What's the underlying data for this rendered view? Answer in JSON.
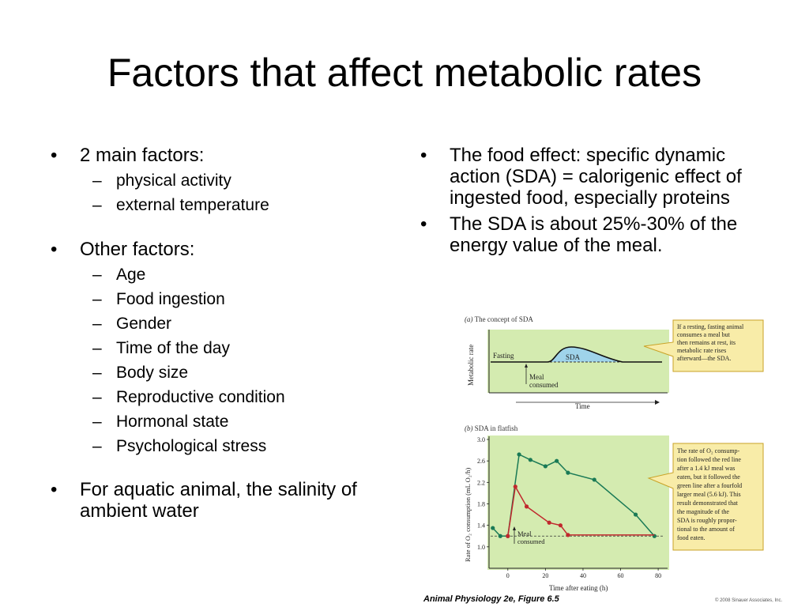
{
  "slide": {
    "title": "Factors that affect metabolic rates",
    "left": {
      "b1": "2 main factors:",
      "b1_subs": [
        "physical activity",
        "external temperature"
      ],
      "b2": "Other factors:",
      "b2_subs": [
        "Age",
        "Food ingestion",
        "Gender",
        "Time of the day",
        "Body size",
        "Reproductive condition",
        "Hormonal state",
        "Psychological stress"
      ],
      "b3": "For aquatic animal, the salinity of ambient water"
    },
    "right": {
      "b1": "The food effect: specific dynamic action (SDA) = calorigenic effect of ingested food, especially proteins",
      "b2": "The SDA is about 25%-30% of the energy value of the meal."
    }
  },
  "figure": {
    "panel_a": {
      "label": "(a)",
      "title": "The concept of SDA",
      "ylabel": "Metabolic rate",
      "xlabel": "Time",
      "fasting_label": "Fasting",
      "sda_label": "SDA",
      "meal_label_1": "Meal",
      "meal_label_2": "consumed",
      "callout": [
        "If a resting, fasting animal",
        "consumes a meal but",
        "then remains at rest, its",
        "metabolic rate rises",
        "afterward—the SDA."
      ]
    },
    "panel_b": {
      "label": "(b)",
      "title": "SDA in flatfish",
      "ylabel": "Rate of O₂ consumption (mL O₂/h)",
      "xlabel": "Time after eating (h)",
      "meal_label_1": "Meal",
      "meal_label_2": "consumed",
      "callout": [
        "The rate of O₂ consump-",
        "tion followed the red line",
        "after a 1.4 kJ meal was",
        "eaten, but it followed the",
        "green line after a fourfold",
        "larger meal (5.6 kJ). This",
        "result demonstrated that",
        "the magnitude of the",
        "SDA is roughly propor-",
        "tional to the amount of",
        "food eaten."
      ]
    },
    "caption": "Animal Physiology 2e, Figure 6.5",
    "copyright": "© 2008 Sinauer Associates, Inc."
  },
  "chart_data": {
    "type": "line",
    "title": "SDA in flatfish",
    "xlabel": "Time after eating (h)",
    "ylabel": "Rate of O₂ consumption (mL O₂/h)",
    "xlim": [
      -10,
      85
    ],
    "ylim": [
      0.6,
      3.0
    ],
    "xticks": [
      "0",
      "20",
      "40",
      "60",
      "80"
    ],
    "yticks": [
      "1.0",
      "1.4",
      "1.8",
      "2.2",
      "2.6",
      "3.0"
    ],
    "baseline": 1.2,
    "series": [
      {
        "color": "#1a7a56",
        "points": [
          [
            -8,
            1.35
          ],
          [
            -4,
            1.2
          ],
          [
            0,
            1.2
          ],
          [
            6,
            2.72
          ],
          [
            12,
            2.62
          ],
          [
            20,
            2.5
          ],
          [
            26,
            2.6
          ],
          [
            32,
            2.38
          ],
          [
            46,
            2.25
          ],
          [
            68,
            1.6
          ],
          [
            78,
            1.2
          ]
        ]
      },
      {
        "color": "#c0282d",
        "points": [
          [
            0,
            1.2
          ],
          [
            4,
            2.12
          ],
          [
            10,
            1.75
          ],
          [
            22,
            1.45
          ],
          [
            28,
            1.4
          ],
          [
            32,
            1.22
          ],
          [
            78,
            1.22
          ]
        ]
      }
    ]
  }
}
